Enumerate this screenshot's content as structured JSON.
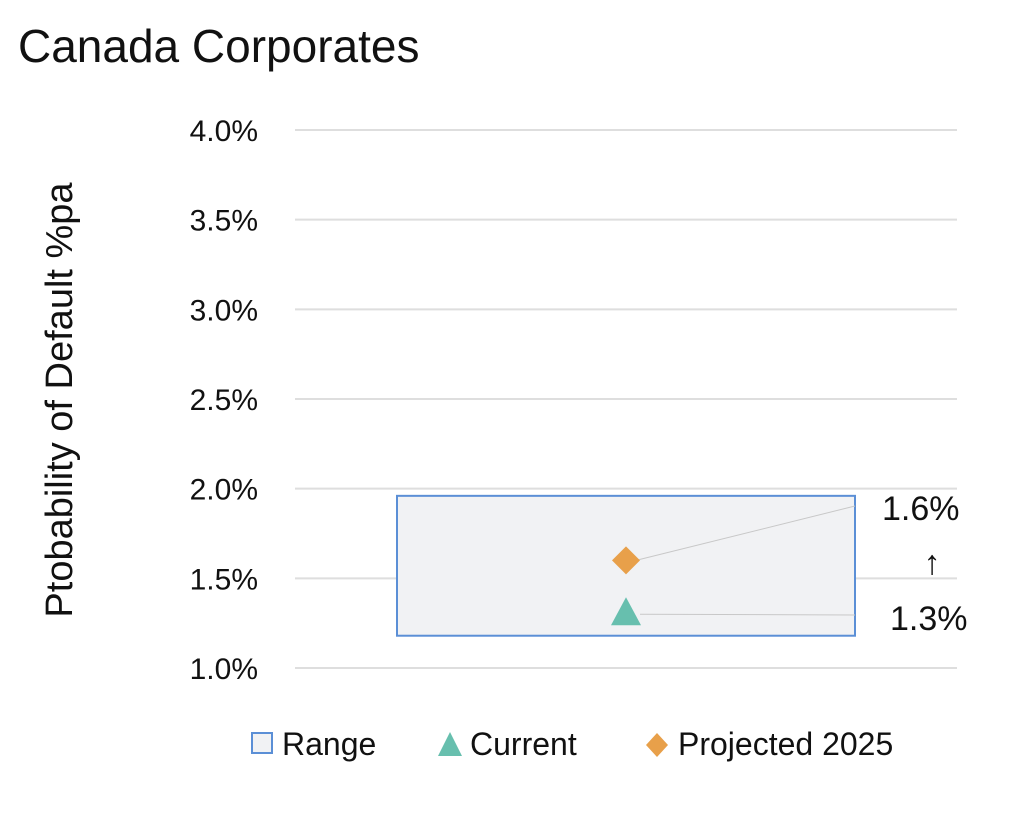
{
  "chart_data": {
    "type": "scatter",
    "title": "Canada Corporates",
    "ylabel": "Ptobability of Default %pa",
    "xlabel": "",
    "ylim": [
      0.01,
      0.04
    ],
    "yticks": [
      "4.0%",
      "3.5%",
      "3.0%",
      "2.5%",
      "2.0%",
      "1.5%",
      "1.0%"
    ],
    "grid": true,
    "range": {
      "name": "Range",
      "low": 0.0118,
      "high": 0.0196
    },
    "series": [
      {
        "name": "Current",
        "marker": "triangle",
        "value": 0.013,
        "label": "1.3%"
      },
      {
        "name": "Projected 2025",
        "marker": "diamond",
        "value": 0.016,
        "label": "1.6%"
      }
    ],
    "change_arrow": "↑",
    "legend_position": "bottom",
    "legend": [
      "Range",
      "Current",
      "Projected 2025"
    ]
  },
  "colors": {
    "range_fill": "#f1f2f4",
    "range_stroke": "#5b8fd6",
    "current": "#67bfae",
    "projected": "#e8a04a",
    "grid": "#dedede",
    "leader": "#c8c8c8"
  }
}
